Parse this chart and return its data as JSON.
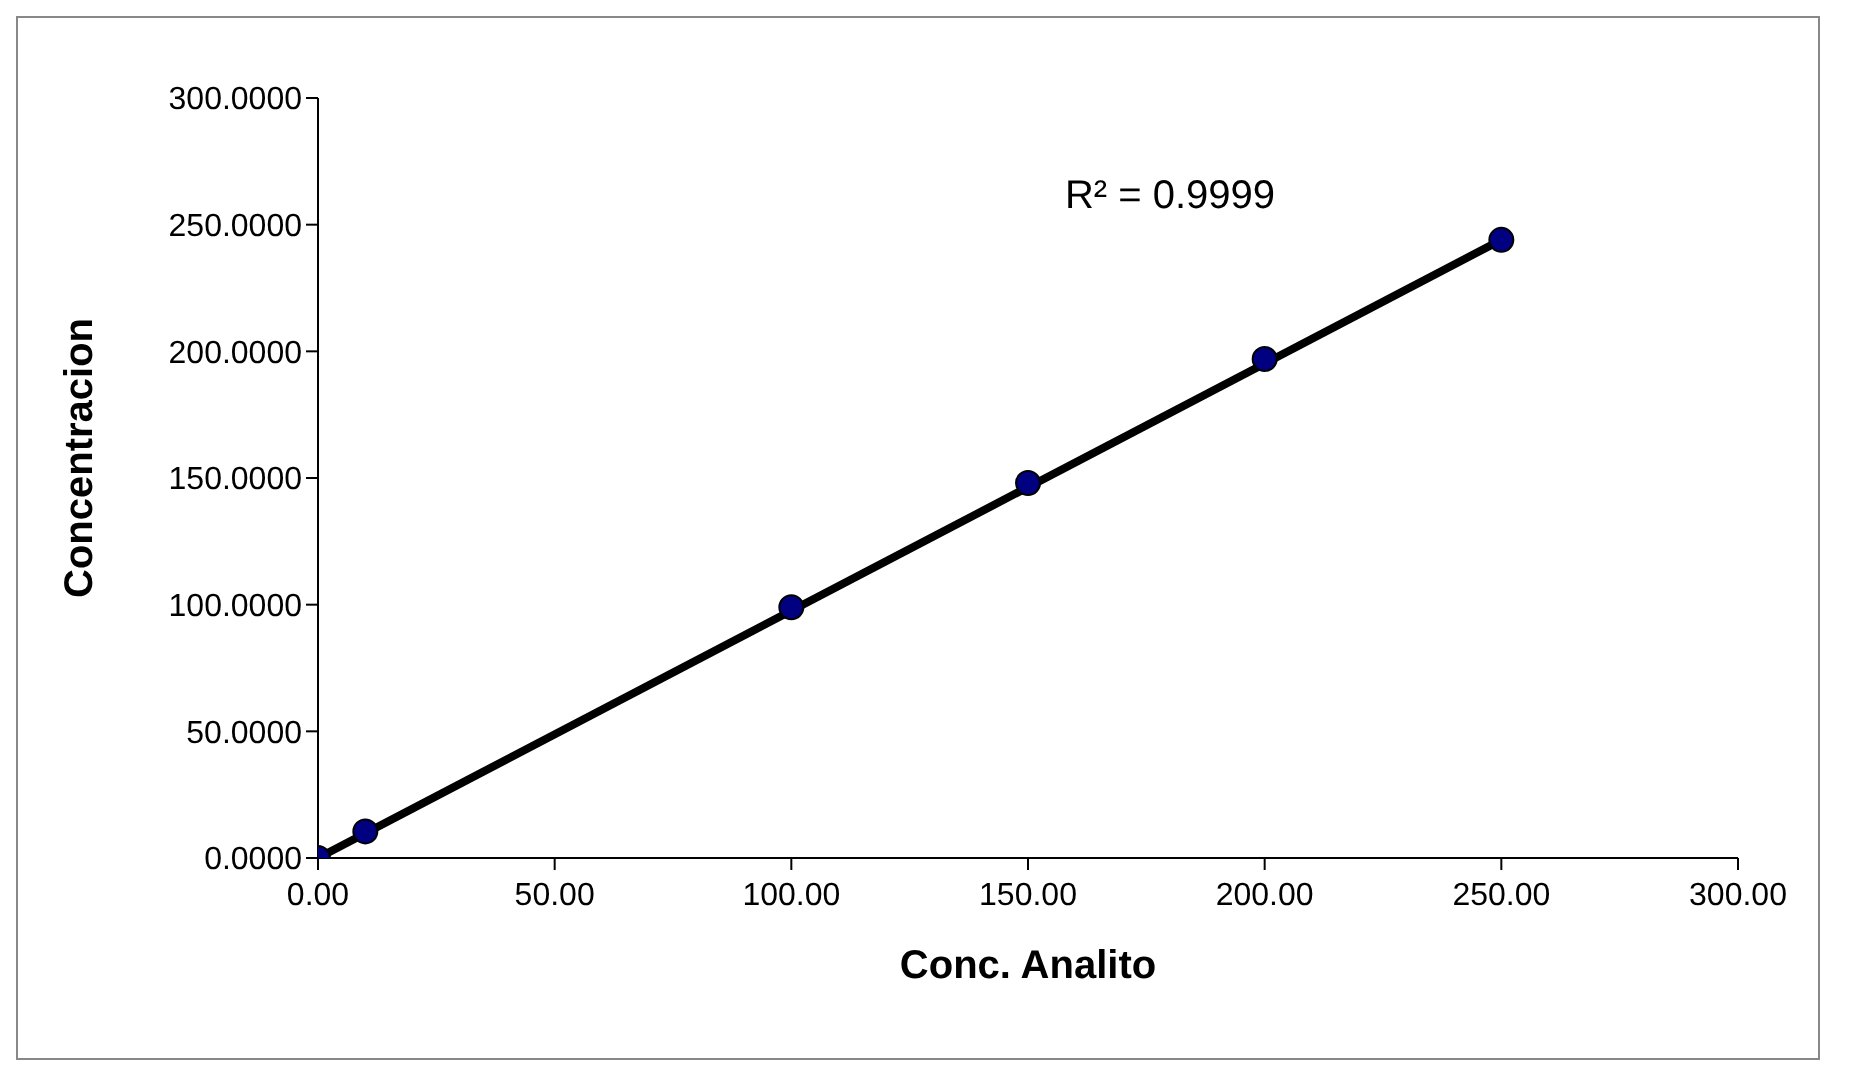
{
  "chart_data": {
    "type": "scatter",
    "xlabel": "Conc. Analito",
    "ylabel": "Concentracion",
    "annotations": [
      "R² = 0.9999"
    ],
    "series": [
      {
        "color": "#000080",
        "x": [
          0,
          10,
          100,
          150,
          200,
          250
        ],
        "values": [
          0,
          10.5,
          99,
          148,
          197,
          244
        ]
      },
      {
        "type": "line",
        "marker": "none",
        "color": "#000000",
        "x": [
          0,
          250
        ],
        "values": [
          0,
          244
        ]
      }
    ],
    "xlim": [
      0,
      300
    ],
    "xticks": [
      {
        "value": 0,
        "label": "0.00"
      },
      {
        "value": 50,
        "label": "50.00"
      },
      {
        "value": 100,
        "label": "100.00"
      },
      {
        "value": 150,
        "label": "150.00"
      },
      {
        "value": 200,
        "label": "200.00"
      },
      {
        "value": 250,
        "label": "250.00"
      },
      {
        "value": 300,
        "label": "300.00"
      }
    ],
    "ylim": [
      0,
      300
    ],
    "yticks": [
      {
        "value": 0,
        "label": "0.0000"
      },
      {
        "value": 50,
        "label": "50.0000"
      },
      {
        "value": 100,
        "label": "100.0000"
      },
      {
        "value": 150,
        "label": "150.0000"
      },
      {
        "value": 200,
        "label": "200.0000"
      },
      {
        "value": 250,
        "label": "250.0000"
      },
      {
        "value": 300,
        "label": "300.0000"
      }
    ],
    "marker": "circle",
    "legend": false,
    "grid": false
  }
}
